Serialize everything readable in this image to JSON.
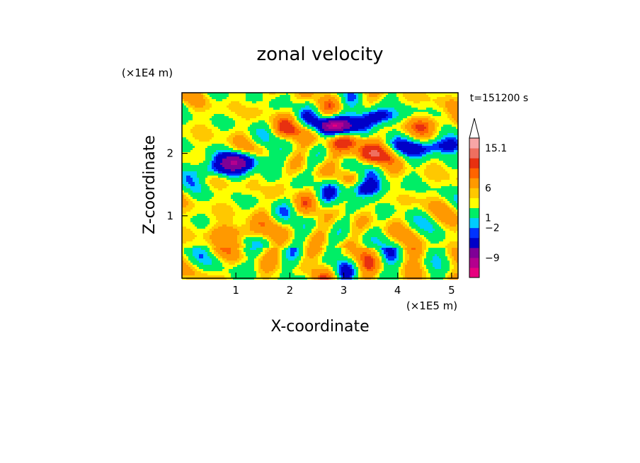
{
  "chart_data": {
    "type": "heatmap",
    "title": "zonal velocity",
    "xlabel": "X-coordinate",
    "ylabel": "Z-coordinate",
    "x_unit": "(×1E5 m)",
    "y_unit": "(×1E4 m)",
    "time_label": "t=151200 s",
    "xlim": [
      0,
      5.12
    ],
    "ylim": [
      0,
      2.97
    ],
    "x_ticks": [
      1,
      2,
      3,
      4,
      5
    ],
    "y_ticks": [
      1,
      2
    ],
    "colorbar": {
      "levels_labels": [
        "15.1",
        "6",
        "1",
        "−2",
        "−9"
      ],
      "colors": [
        "#e7007f",
        "#b4008e",
        "#7f0096",
        "#0000c8",
        "#0033ff",
        "#00ccff",
        "#00ee66",
        "#ffff00",
        "#ffc800",
        "#ff9900",
        "#ff6400",
        "#e83010",
        "#ef6f5f",
        "#f8a6a6"
      ],
      "extend": "max"
    },
    "anomalies": [
      {
        "x": 2.8,
        "z": 2.45,
        "sign": -1,
        "amp": 12
      },
      {
        "x": 1.1,
        "z": 1.9,
        "sign": -1,
        "amp": 7
      },
      {
        "x": 0.6,
        "z": 1.75,
        "sign": -1,
        "amp": 6
      },
      {
        "x": 3.3,
        "z": 1.45,
        "sign": -1,
        "amp": 6
      },
      {
        "x": 3.6,
        "z": 2.6,
        "sign": -1,
        "amp": 6
      },
      {
        "x": 4.9,
        "z": 2.15,
        "sign": -1,
        "amp": 5
      },
      {
        "x": 4.3,
        "z": 2.1,
        "sign": -1,
        "amp": 4
      },
      {
        "x": 3.5,
        "z": 2.0,
        "sign": 1,
        "amp": 5
      },
      {
        "x": 1.0,
        "z": 0.75,
        "sign": 1,
        "amp": 4
      },
      {
        "x": 2.2,
        "z": 2.4,
        "sign": 1,
        "amp": 4
      },
      {
        "x": 3.05,
        "z": 2.2,
        "sign": 1,
        "amp": 4
      },
      {
        "x": 4.6,
        "z": 2.5,
        "sign": 1,
        "amp": 4
      }
    ]
  }
}
